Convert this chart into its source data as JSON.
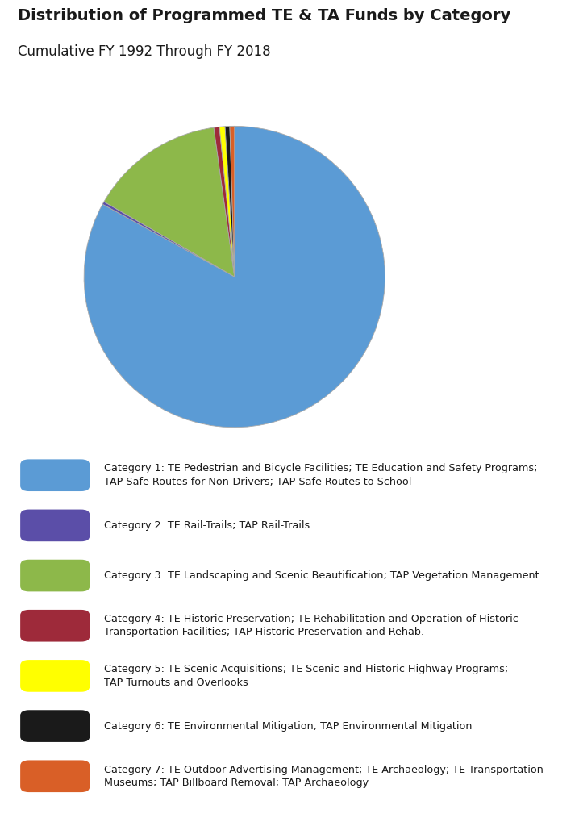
{
  "title": "Distribution of Programmed TE & TA Funds by Category",
  "subtitle": "Cumulative FY 1992 Through FY 2018",
  "title_fontsize": 14,
  "subtitle_fontsize": 12,
  "background_color": "#ffffff",
  "pie_values": [
    83.0,
    0.3,
    14.5,
    0.6,
    0.6,
    0.5,
    0.5
  ],
  "pie_colors": [
    "#5b9bd5",
    "#5b4ea8",
    "#8db84a",
    "#9e2a3a",
    "#ffff00",
    "#1a1a1a",
    "#d95f27"
  ],
  "pie_startangle": 90,
  "legend_items": [
    {
      "color": "#5b9bd5",
      "label": "Category 1: TE Pedestrian and Bicycle Facilities; TE Education and Safety Programs;\nTAP Safe Routes for Non-Drivers; TAP Safe Routes to School"
    },
    {
      "color": "#5b4ea8",
      "label": "Category 2: TE Rail-Trails; TAP Rail-Trails"
    },
    {
      "color": "#8db84a",
      "label": "Category 3: TE Landscaping and Scenic Beautification; TAP Vegetation Management"
    },
    {
      "color": "#9e2a3a",
      "label": "Category 4: TE Historic Preservation; TE Rehabilitation and Operation of Historic\nTransportation Facilities; TAP Historic Preservation and Rehab."
    },
    {
      "color": "#ffff00",
      "label": "Category 5: TE Scenic Acquisitions; TE Scenic and Historic Highway Programs;\nTAP Turnouts and Overlooks"
    },
    {
      "color": "#1a1a1a",
      "label": "Category 6: TE Environmental Mitigation; TAP Environmental Mitigation"
    },
    {
      "color": "#d95f27",
      "label": "Category 7: TE Outdoor Advertising Management; TE Archaeology; TE Transportation\nMuseums; TAP Billboard Removal; TAP Archaeology"
    }
  ]
}
